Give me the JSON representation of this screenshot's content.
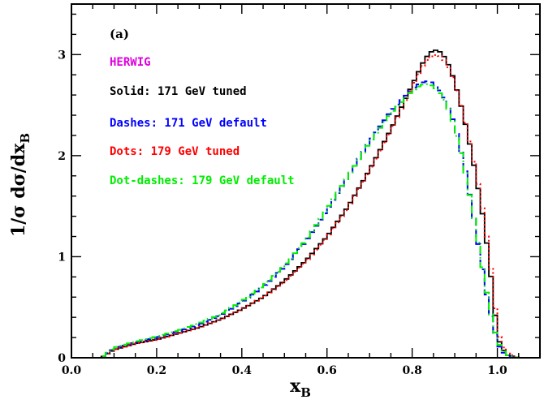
{
  "chart_data": {
    "type": "line",
    "panel_label": "(a)",
    "xlabel": "x",
    "xlabel_sub": "B",
    "ylabel": "1/σ dσ/dx",
    "ylabel_sub": "B",
    "xlim": [
      0.0,
      1.1
    ],
    "ylim": [
      0,
      3.5
    ],
    "xticks": [
      0.0,
      0.2,
      0.4,
      0.6,
      0.8,
      1.0
    ],
    "xtick_labels": [
      "0.0",
      "0.2",
      "0.4",
      "0.6",
      "0.8",
      "1.0"
    ],
    "yticks": [
      0,
      1,
      2,
      3
    ],
    "ytick_labels": [
      "0",
      "1",
      "2",
      "3"
    ],
    "grid": false,
    "legend_title": {
      "text": "HERWIG",
      "color": "#e000e0"
    },
    "legend_placement": "top-left",
    "series": [
      {
        "name": "Solid: 171 GeV tuned",
        "color": "#000000",
        "style": "solid",
        "x": [
          0.0,
          0.07,
          0.1,
          0.15,
          0.2,
          0.25,
          0.3,
          0.35,
          0.4,
          0.45,
          0.5,
          0.55,
          0.6,
          0.65,
          0.7,
          0.75,
          0.8,
          0.83,
          0.85,
          0.87,
          0.89,
          0.91,
          0.93,
          0.95,
          0.97,
          0.99,
          1.0,
          1.02,
          1.05,
          1.1
        ],
        "y": [
          0.0,
          0.0,
          0.08,
          0.14,
          0.18,
          0.24,
          0.3,
          0.38,
          0.48,
          0.6,
          0.76,
          0.96,
          1.2,
          1.5,
          1.86,
          2.26,
          2.7,
          2.96,
          3.05,
          3.02,
          2.86,
          2.58,
          2.22,
          1.8,
          1.3,
          0.64,
          0.2,
          0.03,
          0.0,
          0.0
        ]
      },
      {
        "name": "Dashes: 171 GeV default",
        "color": "#0000ff",
        "style": "dashed",
        "x": [
          0.0,
          0.07,
          0.1,
          0.15,
          0.2,
          0.25,
          0.3,
          0.35,
          0.4,
          0.45,
          0.5,
          0.55,
          0.6,
          0.65,
          0.7,
          0.75,
          0.8,
          0.82,
          0.84,
          0.86,
          0.88,
          0.9,
          0.92,
          0.94,
          0.96,
          0.98,
          1.0,
          1.02,
          1.05,
          1.1
        ],
        "y": [
          0.0,
          0.0,
          0.09,
          0.15,
          0.2,
          0.26,
          0.33,
          0.42,
          0.55,
          0.7,
          0.9,
          1.15,
          1.46,
          1.8,
          2.14,
          2.44,
          2.66,
          2.72,
          2.74,
          2.68,
          2.54,
          2.3,
          1.96,
          1.5,
          1.0,
          0.5,
          0.14,
          0.02,
          0.0,
          0.0
        ]
      },
      {
        "name": "Dots: 179 GeV tuned",
        "color": "#ff0000",
        "style": "dotted",
        "x": [
          0.0,
          0.07,
          0.1,
          0.15,
          0.2,
          0.25,
          0.3,
          0.35,
          0.4,
          0.45,
          0.5,
          0.55,
          0.6,
          0.65,
          0.7,
          0.75,
          0.8,
          0.83,
          0.85,
          0.87,
          0.89,
          0.91,
          0.93,
          0.95,
          0.97,
          0.99,
          1.0,
          1.02,
          1.05,
          1.1
        ],
        "y": [
          0.0,
          0.0,
          0.08,
          0.14,
          0.18,
          0.24,
          0.3,
          0.38,
          0.48,
          0.6,
          0.75,
          0.95,
          1.19,
          1.49,
          1.85,
          2.25,
          2.68,
          2.93,
          3.0,
          2.98,
          2.84,
          2.58,
          2.24,
          1.84,
          1.36,
          0.72,
          0.26,
          0.05,
          0.0,
          0.0
        ]
      },
      {
        "name": "Dot-dashes: 179 GeV default",
        "color": "#00ee00",
        "style": "dashdot",
        "x": [
          0.0,
          0.07,
          0.1,
          0.15,
          0.2,
          0.25,
          0.3,
          0.35,
          0.4,
          0.45,
          0.5,
          0.55,
          0.6,
          0.65,
          0.7,
          0.75,
          0.8,
          0.82,
          0.84,
          0.86,
          0.88,
          0.9,
          0.92,
          0.94,
          0.96,
          0.98,
          1.0,
          1.02,
          1.05,
          1.1
        ],
        "y": [
          0.0,
          0.0,
          0.1,
          0.16,
          0.21,
          0.27,
          0.34,
          0.43,
          0.56,
          0.71,
          0.91,
          1.16,
          1.47,
          1.8,
          2.13,
          2.42,
          2.64,
          2.7,
          2.71,
          2.65,
          2.52,
          2.28,
          1.94,
          1.5,
          1.02,
          0.52,
          0.16,
          0.03,
          0.0,
          0.0
        ]
      }
    ]
  }
}
